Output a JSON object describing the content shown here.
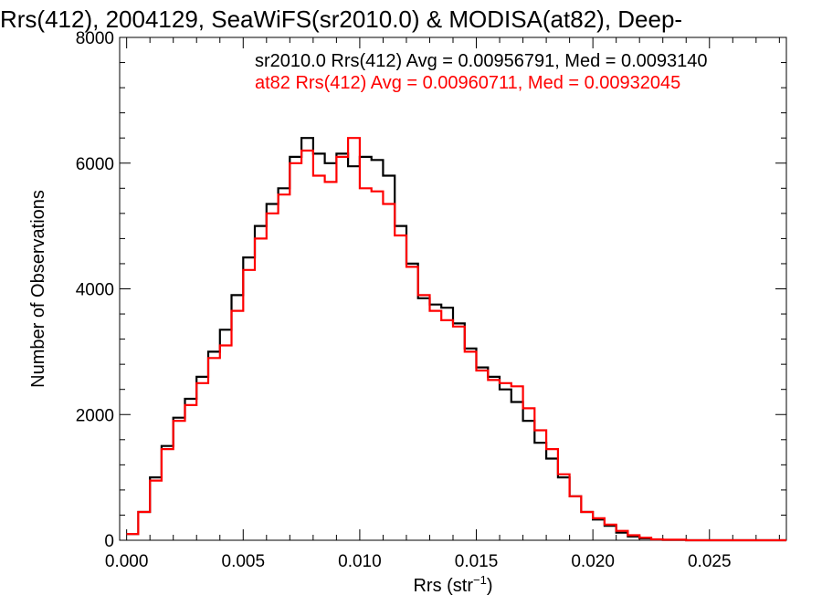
{
  "chart_data": {
    "type": "line",
    "step": true,
    "title": "Rrs(412), 2004129, SeaWiFS(sr2010.0) & MODISA(at82), Deep-",
    "xlabel": "Rrs (str",
    "xlabel_sup": "−1",
    "xlabel_suffix": ")",
    "ylabel": "Number of Observations",
    "xlim": [
      -0.0003,
      0.0283
    ],
    "ylim": [
      0,
      8000
    ],
    "x_ticks": [
      "0.000",
      "0.005",
      "0.010",
      "0.015",
      "0.020",
      "0.025"
    ],
    "y_ticks": [
      "0",
      "2000",
      "4000",
      "6000",
      "8000"
    ],
    "legend_position": "top-right",
    "series": [
      {
        "name": "sr2010.0 Rrs(412) Avg = 0.00956791, Med = 0.0093140",
        "color": "#000000",
        "x": [
          0.0,
          0.0005,
          0.001,
          0.0015,
          0.002,
          0.0025,
          0.003,
          0.0035,
          0.004,
          0.0045,
          0.005,
          0.0055,
          0.006,
          0.0065,
          0.007,
          0.0075,
          0.008,
          0.0085,
          0.009,
          0.0095,
          0.01,
          0.0105,
          0.011,
          0.0115,
          0.012,
          0.0125,
          0.013,
          0.0135,
          0.014,
          0.0145,
          0.015,
          0.0155,
          0.016,
          0.0165,
          0.017,
          0.0175,
          0.018,
          0.0185,
          0.019,
          0.0195,
          0.02,
          0.0205,
          0.021,
          0.0215,
          0.022,
          0.0225,
          0.023,
          0.024,
          0.025,
          0.026,
          0.027,
          0.028
        ],
        "y": [
          100,
          450,
          1000,
          1500,
          1950,
          2250,
          2600,
          3000,
          3350,
          3900,
          4500,
          5000,
          5350,
          5600,
          6100,
          6400,
          6150,
          6000,
          6150,
          5950,
          6100,
          6050,
          5800,
          5000,
          4400,
          3850,
          3750,
          3700,
          3450,
          3050,
          2750,
          2600,
          2400,
          2200,
          1900,
          1550,
          1300,
          1000,
          700,
          450,
          330,
          230,
          120,
          60,
          30,
          10,
          5,
          0,
          0,
          0,
          0,
          0
        ]
      },
      {
        "name": "at82 Rrs(412) Avg = 0.00960711, Med = 0.00932045",
        "color": "#ff0000",
        "x": [
          0.0,
          0.0005,
          0.001,
          0.0015,
          0.002,
          0.0025,
          0.003,
          0.0035,
          0.004,
          0.0045,
          0.005,
          0.0055,
          0.006,
          0.0065,
          0.007,
          0.0075,
          0.008,
          0.0085,
          0.009,
          0.0095,
          0.01,
          0.0105,
          0.011,
          0.0115,
          0.012,
          0.0125,
          0.013,
          0.0135,
          0.014,
          0.0145,
          0.015,
          0.0155,
          0.016,
          0.0165,
          0.017,
          0.0175,
          0.018,
          0.0185,
          0.019,
          0.0195,
          0.02,
          0.0205,
          0.021,
          0.0215,
          0.022,
          0.0225,
          0.023,
          0.024,
          0.025,
          0.026,
          0.027,
          0.028
        ],
        "y": [
          100,
          450,
          950,
          1450,
          1900,
          2150,
          2500,
          2900,
          3100,
          3650,
          4300,
          4800,
          5200,
          5500,
          6000,
          6200,
          5800,
          5700,
          6100,
          6400,
          5600,
          5550,
          5350,
          4850,
          4350,
          3900,
          3650,
          3500,
          3400,
          3000,
          2700,
          2550,
          2500,
          2450,
          2100,
          1750,
          1450,
          1050,
          700,
          450,
          350,
          250,
          150,
          80,
          40,
          15,
          8,
          0,
          0,
          0,
          0,
          0
        ]
      }
    ]
  }
}
